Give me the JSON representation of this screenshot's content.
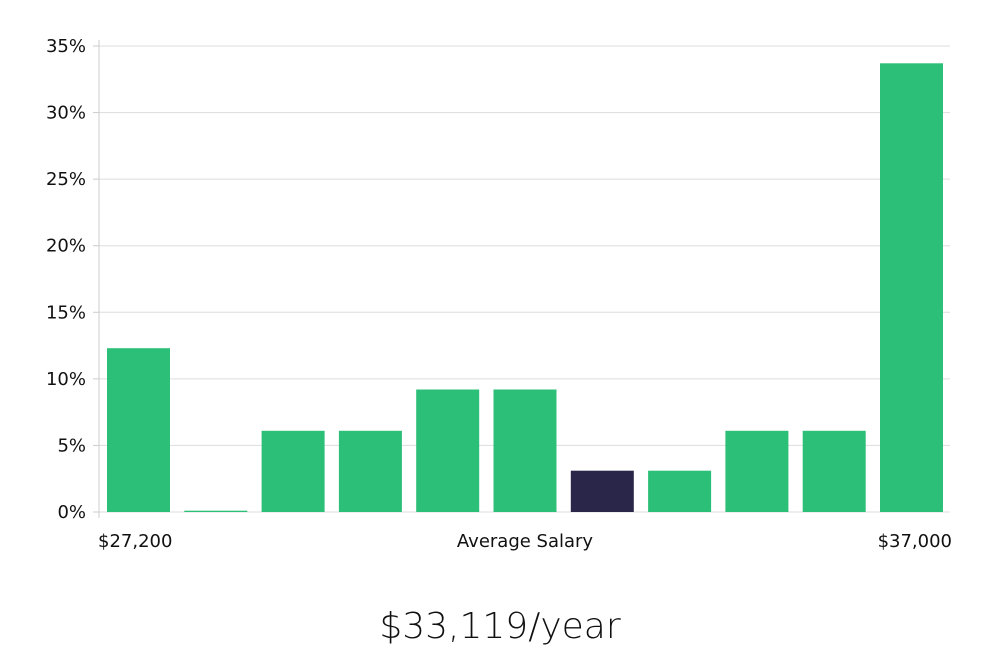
{
  "chart_data": {
    "type": "bar",
    "categories": [
      "1",
      "2",
      "3",
      "4",
      "5",
      "6",
      "7",
      "8",
      "9",
      "10",
      "11"
    ],
    "values": [
      12.3,
      0.1,
      6.1,
      6.1,
      9.2,
      9.2,
      3.1,
      3.1,
      6.1,
      6.1,
      33.7
    ],
    "highlight_index": 6,
    "ylim": [
      0,
      35
    ],
    "yticks": [
      "0%",
      "5%",
      "10%",
      "15%",
      "20%",
      "25%",
      "30%",
      "35%"
    ],
    "y_tick_values": [
      0,
      5,
      10,
      15,
      20,
      25,
      30,
      35
    ],
    "x_min_label": "$27,200",
    "x_max_label": "$37,000",
    "xlabel": "Average Salary",
    "grid": true,
    "colors": {
      "bar": "#2bbf78",
      "highlight": "#29264a",
      "grid": "#dddddd",
      "axis": "#cccccc"
    }
  },
  "salary_text": "$33,119/year"
}
